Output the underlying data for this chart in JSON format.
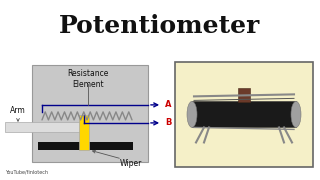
{
  "title": "Potentiometer",
  "title_bg": "#FFFF00",
  "title_color": "#111111",
  "title_fontsize": 18,
  "bg_color": "#FFFFFF",
  "diagram_bg": "#C8C8C8",
  "label_resistance": "Resistance\nElement",
  "label_arm": "Arm",
  "label_wiper": "Wiper",
  "label_A": "A",
  "label_B": "B",
  "watermark": "YouTube/finlotech",
  "photo_bg": "#F5F0C8",
  "photo_border": "#666666",
  "coil_color": "#888888",
  "wire_color": "#00008B",
  "terminal_color": "#CC0000",
  "wiper_color": "#FFD700",
  "arm_color": "#DDDDDD",
  "arm_border": "#AAAAAA",
  "black_base": "#111111"
}
